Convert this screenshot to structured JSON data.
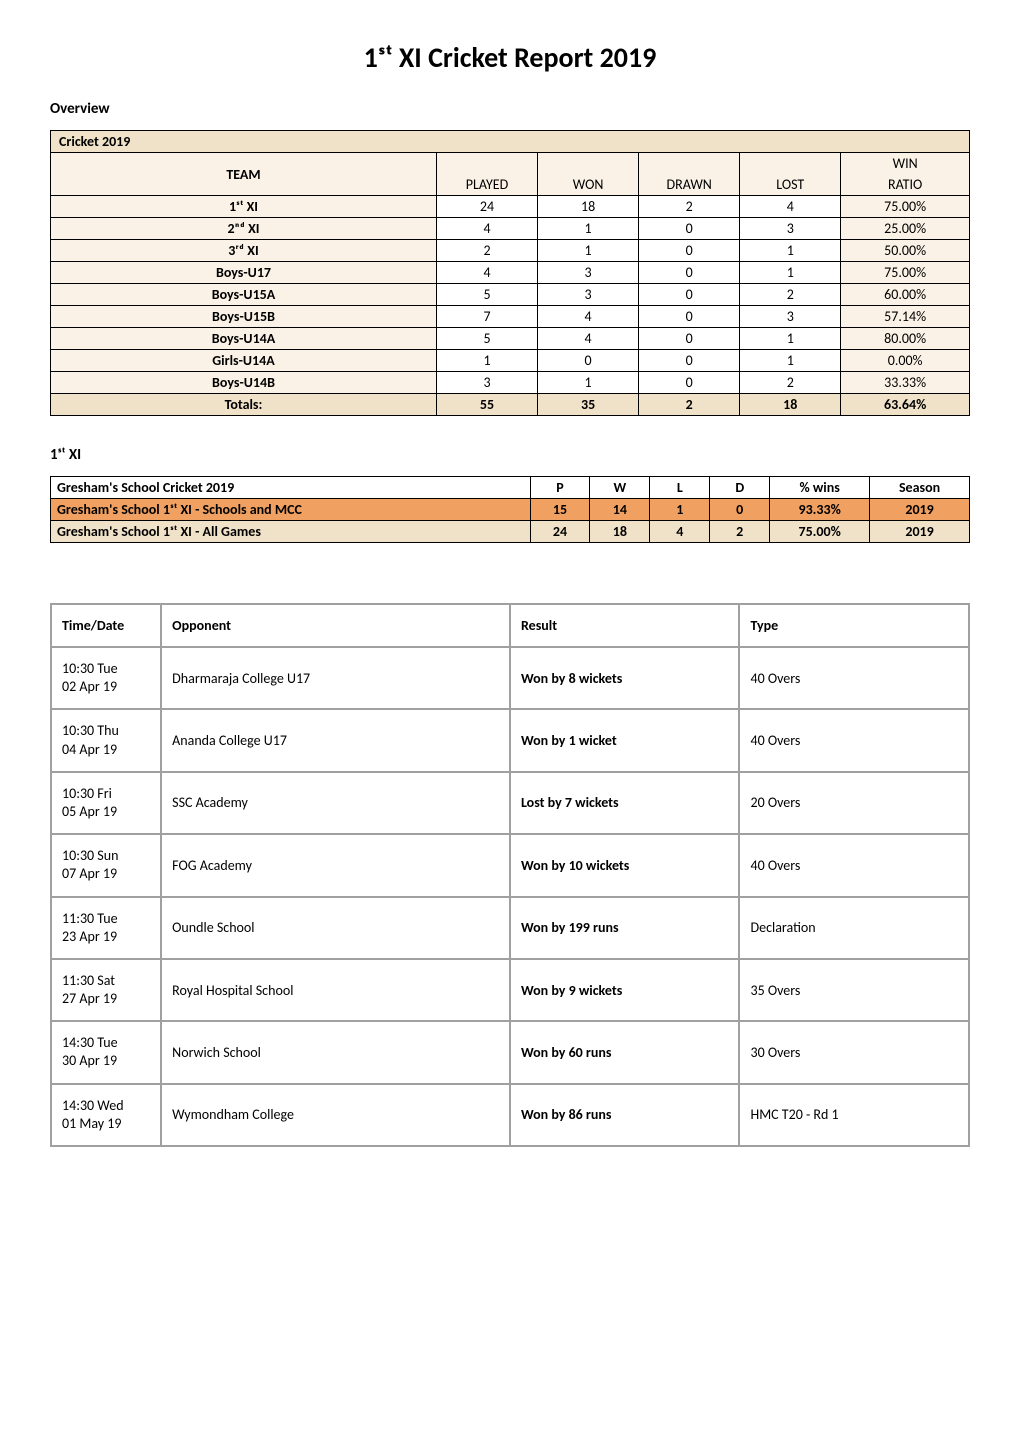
{
  "title": "1ˢᵗ XI Cricket Report 2019",
  "overview": {
    "heading": "Overview",
    "banner": "Cricket 2019",
    "columns": {
      "team": "TEAM",
      "played": "PLAYED",
      "won": "WON",
      "drawn": "DRAWN",
      "lost": "LOST",
      "ratio_top": "WIN",
      "ratio_bottom": "RATIO"
    },
    "rows": [
      {
        "team": "1ˢᵗ XI",
        "played": "24",
        "won": "18",
        "drawn": "2",
        "lost": "4",
        "ratio": "75.00%"
      },
      {
        "team": "2ⁿᵈ XI",
        "played": "4",
        "won": "1",
        "drawn": "0",
        "lost": "3",
        "ratio": "25.00%"
      },
      {
        "team": "3ʳᵈ XI",
        "played": "2",
        "won": "1",
        "drawn": "0",
        "lost": "1",
        "ratio": "50.00%"
      },
      {
        "team": "Boys-U17",
        "played": "4",
        "won": "3",
        "drawn": "0",
        "lost": "1",
        "ratio": "75.00%"
      },
      {
        "team": "Boys-U15A",
        "played": "5",
        "won": "3",
        "drawn": "0",
        "lost": "2",
        "ratio": "60.00%"
      },
      {
        "team": "Boys-U15B",
        "played": "7",
        "won": "4",
        "drawn": "0",
        "lost": "3",
        "ratio": "57.14%"
      },
      {
        "team": "Boys-U14A",
        "played": "5",
        "won": "4",
        "drawn": "0",
        "lost": "1",
        "ratio": "80.00%"
      },
      {
        "team": "Girls-U14A",
        "played": "1",
        "won": "0",
        "drawn": "0",
        "lost": "1",
        "ratio": "0.00%"
      },
      {
        "team": "Boys-U14B",
        "played": "3",
        "won": "1",
        "drawn": "0",
        "lost": "2",
        "ratio": "33.33%"
      }
    ],
    "totals": {
      "label": "Totals:",
      "played": "55",
      "won": "35",
      "drawn": "2",
      "lost": "18",
      "ratio": "63.64%"
    },
    "colors": {
      "banner_bg": "#f0e2c8",
      "light_bg": "#faf2e6",
      "border": "#000000"
    }
  },
  "summary": {
    "heading": "1ˢᵗ XI",
    "columns": [
      "Gresham's School Cricket 2019",
      "P",
      "W",
      "L",
      "D",
      "% wins",
      "Season"
    ],
    "row1": [
      "Gresham's School 1ˢᵗ XI - Schools and MCC",
      "15",
      "14",
      "1",
      "0",
      "93.33%",
      "2019"
    ],
    "row2": [
      "Gresham's School 1ˢᵗ XI - All Games",
      "24",
      "18",
      "4",
      "2",
      "75.00%",
      "2019"
    ],
    "colors": {
      "row1_bg": "#f0a060",
      "row2_bg": "#f0e2c8"
    }
  },
  "fixtures": {
    "columns": [
      "Time/Date",
      "Opponent",
      "Result",
      "Type"
    ],
    "rows": [
      {
        "time": "10:30 Tue",
        "date": "02 Apr 19",
        "opponent": "Dharmaraja College U17",
        "result": "Won by 8 wickets",
        "type": "40 Overs"
      },
      {
        "time": "10:30 Thu",
        "date": "04 Apr 19",
        "opponent": "Ananda College U17",
        "result": "Won by 1 wicket",
        "type": "40 Overs"
      },
      {
        "time": "10:30 Fri",
        "date": "05 Apr 19",
        "opponent": "SSC Academy",
        "result": "Lost by 7 wickets",
        "type": "20 Overs"
      },
      {
        "time": "10:30 Sun",
        "date": "07 Apr 19",
        "opponent": "FOG Academy",
        "result": "Won by 10 wickets",
        "type": "40 Overs"
      },
      {
        "time": "11:30 Tue",
        "date": "23 Apr 19",
        "opponent": "Oundle School",
        "result": "Won by 199 runs",
        "type": "Declaration"
      },
      {
        "time": "11:30 Sat",
        "date": "27 Apr 19",
        "opponent": "Royal Hospital School",
        "result": "Won by 9 wickets",
        "type": "35 Overs"
      },
      {
        "time": "14:30 Tue",
        "date": "30 Apr 19",
        "opponent": "Norwich School",
        "result": "Won by 60 runs",
        "type": "30 Overs"
      },
      {
        "time": "14:30 Wed",
        "date": "01 May 19",
        "opponent": "Wymondham College",
        "result": "Won by 86 runs",
        "type": "HMC T20 - Rd 1"
      }
    ],
    "colors": {
      "border": "#a0a0a0"
    }
  }
}
